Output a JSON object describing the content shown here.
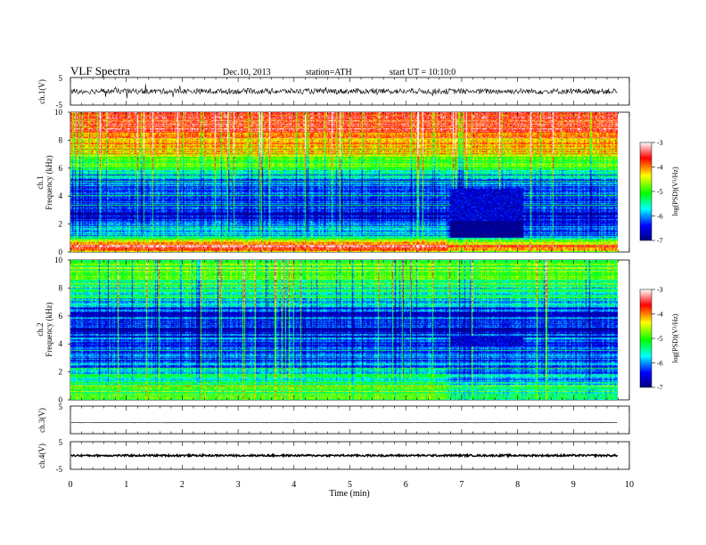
{
  "header": {
    "title": "VLF  Spectra",
    "date": "Dec.10, 2013",
    "station": "station=ATH",
    "start": "start  UT  =    10:10:0"
  },
  "colors": {
    "colormap": [
      "#000080",
      "#0000ff",
      "#00ffff",
      "#00ff00",
      "#ffff00",
      "#ff0000",
      "#ffffff"
    ],
    "trace": "#000000",
    "background": "#ffffff"
  },
  "chart_data": [
    {
      "id": "ch1-waveform",
      "type": "line",
      "ylabel": "ch.1(V)",
      "ylim": [
        -5,
        5
      ],
      "yticks": [
        "5",
        "-5"
      ],
      "xlim": [
        0,
        10
      ],
      "description": "noisy waveform, typical amplitude about ±1 V with sparse spikes to ±2 V",
      "series": [
        {
          "level": 0,
          "noise_amplitude": 1.0
        }
      ]
    },
    {
      "id": "ch1-spectrogram",
      "type": "heatmap",
      "ylabel": "ch.1\nFrequency   (kHz)",
      "ylim": [
        0,
        10
      ],
      "yticks": [
        "0",
        "2",
        "4",
        "6",
        "8",
        "10"
      ],
      "xlim": [
        0,
        10
      ],
      "data_end_min": 9.8,
      "colorbar": {
        "label": "log(PSD)(V²/Hz)",
        "range": [
          -7,
          -3
        ],
        "ticks": [
          "-3",
          "-4",
          "-5",
          "-6",
          "-7"
        ]
      },
      "levels_vs_frequency_kHz": [
        [
          0,
          -4.1
        ],
        [
          0.5,
          -3.6
        ],
        [
          1,
          -5.4
        ],
        [
          2,
          -6.3
        ],
        [
          3,
          -6.6
        ],
        [
          4,
          -6.2
        ],
        [
          5,
          -6.0
        ],
        [
          6,
          -5.2
        ],
        [
          7,
          -4.4
        ],
        [
          8,
          -3.9
        ],
        [
          9,
          -3.6
        ],
        [
          10,
          -3.7
        ]
      ],
      "quiet_region": {
        "t_min": [
          6.8,
          8.1
        ],
        "f_kHz": [
          1.0,
          4.5
        ],
        "level": -7
      }
    },
    {
      "id": "ch2-spectrogram",
      "type": "heatmap",
      "ylabel": "ch.2\nFrequency   (kHz)",
      "ylim": [
        0,
        10
      ],
      "yticks": [
        "0",
        "2",
        "4",
        "6",
        "8",
        "10"
      ],
      "xlim": [
        0,
        10
      ],
      "data_end_min": 9.8,
      "colorbar": {
        "label": "log(PSD)(V²/Hz)",
        "range": [
          -7,
          -3
        ],
        "ticks": [
          "-3",
          "-4",
          "-5",
          "-6",
          "-7"
        ]
      },
      "levels_vs_frequency_kHz": [
        [
          0,
          -4.9
        ],
        [
          0.5,
          -5.0
        ],
        [
          1,
          -5.3
        ],
        [
          2,
          -5.7
        ],
        [
          3,
          -6.3
        ],
        [
          4,
          -6.1
        ],
        [
          5,
          -6.4
        ],
        [
          6,
          -6.4
        ],
        [
          7,
          -5.8
        ],
        [
          8,
          -5.1
        ],
        [
          9,
          -4.9
        ],
        [
          10,
          -5.0
        ]
      ],
      "quiet_region": {
        "t_min": [
          6.8,
          8.1
        ],
        "f_kHz": [
          3.8,
          4.6
        ],
        "level": -7
      }
    },
    {
      "id": "ch3-waveform",
      "type": "line",
      "ylabel": "ch.3(V)",
      "ylim": [
        -5,
        5
      ],
      "yticks": [
        "5"
      ],
      "xlim": [
        0,
        10
      ],
      "description": "flat trace near -1 V",
      "series": [
        {
          "level": -1,
          "noise_amplitude": 0.08
        }
      ]
    },
    {
      "id": "ch4-waveform",
      "type": "line",
      "ylabel": "ch.4(V)",
      "ylim": [
        -5,
        5
      ],
      "yticks": [
        "5",
        "-5"
      ],
      "xlim": [
        0,
        10
      ],
      "xticks": [
        "0",
        "1",
        "2",
        "3",
        "4",
        "5",
        "6",
        "7",
        "8",
        "9",
        "10"
      ],
      "xlabel": "Time  (min)",
      "description": "thick flat trace at about 0 V",
      "series": [
        {
          "level": 0,
          "noise_amplitude": 0.35
        }
      ]
    }
  ]
}
